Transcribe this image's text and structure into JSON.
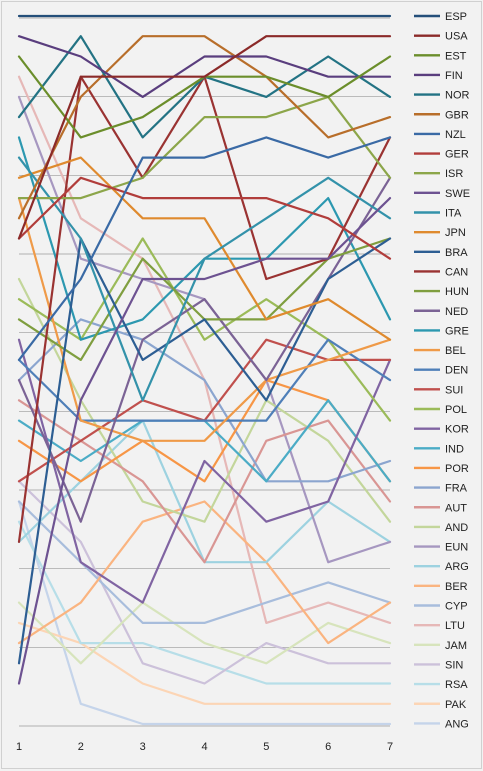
{
  "chart_data": {
    "type": "line",
    "title": "",
    "xlabel": "",
    "ylabel": "",
    "x": [
      1,
      2,
      3,
      4,
      5,
      6,
      7
    ],
    "ylim": [
      1,
      36
    ],
    "y_inverted": true,
    "y_ticks_shown": false,
    "grid": "horizontal",
    "legend_position": "right",
    "series": [
      {
        "name": "ESP",
        "color": "#244f7a",
        "values": [
          1,
          1,
          1,
          1,
          1,
          1,
          1
        ]
      },
      {
        "name": "USA",
        "color": "#8b2a29",
        "values": [
          12,
          4,
          4,
          4,
          2,
          2,
          2
        ]
      },
      {
        "name": "EST",
        "color": "#6b8e2b",
        "values": [
          3,
          7,
          6,
          4,
          4,
          5,
          3
        ]
      },
      {
        "name": "FIN",
        "color": "#5a3e7e",
        "values": [
          2,
          3,
          5,
          3,
          3,
          4,
          4
        ]
      },
      {
        "name": "NOR",
        "color": "#237384",
        "values": [
          6,
          2,
          7,
          4,
          5,
          3,
          5
        ]
      },
      {
        "name": "GBR",
        "color": "#b86e2a",
        "values": [
          11,
          5,
          2,
          2,
          4,
          7,
          6
        ]
      },
      {
        "name": "NZL",
        "color": "#3a6aa5",
        "values": [
          18,
          14,
          8,
          8,
          7,
          8,
          7
        ]
      },
      {
        "name": "GER",
        "color": "#b13d3b",
        "values": [
          12,
          9,
          10,
          10,
          10,
          11,
          13
        ]
      },
      {
        "name": "ISR",
        "color": "#8ca64a",
        "values": [
          10,
          10,
          9,
          6,
          6,
          5,
          9
        ]
      },
      {
        "name": "SWE",
        "color": "#6d5291",
        "values": [
          34,
          20,
          14,
          14,
          13,
          13,
          10
        ]
      },
      {
        "name": "ITA",
        "color": "#3392aa",
        "values": [
          8,
          12,
          20,
          13,
          11,
          9,
          11
        ]
      },
      {
        "name": "JPN",
        "color": "#df8a2e",
        "values": [
          9,
          8,
          11,
          11,
          16,
          15,
          17
        ]
      },
      {
        "name": "BRA",
        "color": "#2d5e93",
        "values": [
          33,
          12,
          18,
          16,
          20,
          14,
          12
        ]
      },
      {
        "name": "CAN",
        "color": "#9a3332",
        "values": [
          27,
          4,
          9,
          4,
          14,
          13,
          7
        ]
      },
      {
        "name": "HUN",
        "color": "#7f9e3f",
        "values": [
          16,
          18,
          13,
          16,
          16,
          13,
          12
        ]
      },
      {
        "name": "NED",
        "color": "#7b6395",
        "values": [
          19,
          26,
          17,
          15,
          19,
          14,
          9
        ]
      },
      {
        "name": "GRE",
        "color": "#2c98b0",
        "values": [
          7,
          17,
          16,
          13,
          13,
          10,
          16
        ]
      },
      {
        "name": "BEL",
        "color": "#ef9a48",
        "values": [
          10,
          21,
          22,
          22,
          19,
          18,
          17
        ]
      },
      {
        "name": "DEN",
        "color": "#4f7fb8",
        "values": [
          18,
          21,
          21,
          21,
          21,
          17,
          19
        ]
      },
      {
        "name": "SUI",
        "color": "#c0504d",
        "values": [
          24,
          22,
          20,
          21,
          17,
          18,
          18
        ]
      },
      {
        "name": "POL",
        "color": "#9bbb59",
        "values": [
          15,
          17,
          12,
          17,
          15,
          17,
          21
        ]
      },
      {
        "name": "KOR",
        "color": "#8064a2",
        "values": [
          17,
          28,
          30,
          23,
          26,
          25,
          18
        ]
      },
      {
        "name": "IND",
        "color": "#4bacc6",
        "values": [
          21,
          23,
          21,
          21,
          24,
          20,
          24
        ]
      },
      {
        "name": "POR",
        "color": "#f79646",
        "values": [
          22,
          24,
          22,
          24,
          19,
          20,
          24
        ]
      },
      {
        "name": "FRA",
        "color": "#8ba5cf",
        "values": [
          19,
          16,
          17,
          19,
          24,
          24,
          23
        ]
      },
      {
        "name": "AUT",
        "color": "#d99694",
        "values": [
          20,
          22,
          24,
          28,
          22,
          21,
          25
        ]
      },
      {
        "name": "AND",
        "color": "#c3d69b",
        "values": [
          14,
          20,
          25,
          26,
          20,
          22,
          26
        ]
      },
      {
        "name": "EUN",
        "color": "#a697c0",
        "values": [
          5,
          13,
          14,
          15,
          19,
          28,
          27
        ]
      },
      {
        "name": "ARG",
        "color": "#9dd2e0",
        "values": [
          27,
          24,
          21,
          28,
          28,
          25,
          27
        ]
      },
      {
        "name": "BER",
        "color": "#fab480",
        "values": [
          32,
          30,
          26,
          25,
          28,
          32,
          30
        ]
      },
      {
        "name": "CYP",
        "color": "#a8bddc",
        "values": [
          25,
          28,
          31,
          31,
          30,
          29,
          30
        ]
      },
      {
        "name": "LTU",
        "color": "#e6b8b7",
        "values": [
          4,
          11,
          13,
          19,
          31,
          30,
          31
        ]
      },
      {
        "name": "JAM",
        "color": "#d7e4bc",
        "values": [
          30,
          33,
          30,
          32,
          33,
          31,
          32
        ]
      },
      {
        "name": "SIN",
        "color": "#ccc1da",
        "values": [
          24,
          27,
          33,
          34,
          32,
          33,
          33
        ]
      },
      {
        "name": "RSA",
        "color": "#b7dee8",
        "values": [
          26,
          32,
          32,
          33,
          34,
          34,
          34
        ]
      },
      {
        "name": "PAK",
        "color": "#fcd5b5",
        "values": [
          31,
          32,
          34,
          35,
          35,
          35,
          35
        ]
      },
      {
        "name": "ANG",
        "color": "#c5d4ea",
        "values": [
          25,
          35,
          36,
          36,
          36,
          36,
          36
        ]
      }
    ]
  }
}
